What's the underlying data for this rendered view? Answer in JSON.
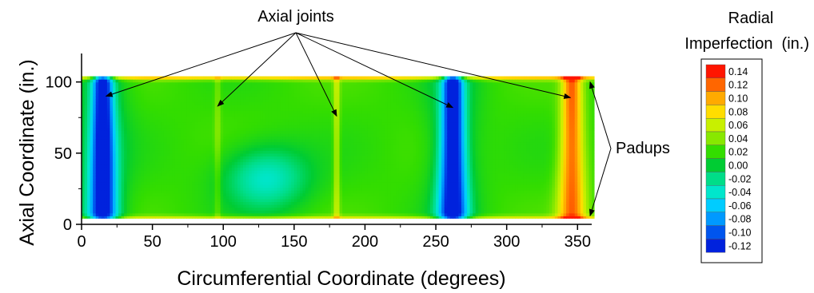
{
  "chart_data": {
    "type": "heatmap",
    "xlabel": "Circumferential Coordinate (degrees)",
    "ylabel": "Axial Coordinate (in.)",
    "xlim": [
      0,
      360
    ],
    "ylim": [
      0,
      120
    ],
    "xticks": [
      "0",
      "50",
      "100",
      "150",
      "200",
      "250",
      "300",
      "350"
    ],
    "yticks": [
      "0",
      "50",
      "100"
    ],
    "data_extent": {
      "x": [
        0,
        362
      ],
      "y": [
        4,
        104
      ]
    },
    "colorbar": {
      "title_line1": "Radial",
      "title_line2": "Imperfection  (in.)",
      "levels": [
        "0.14",
        "0.12",
        "0.10",
        "0.08",
        "0.06",
        "0.04",
        "0.02",
        "0.00",
        "-0.02",
        "-0.04",
        "-0.06",
        "-0.08",
        "-0.10",
        "-0.12"
      ],
      "colors": [
        "#ff1500",
        "#ff6600",
        "#ffaa00",
        "#ffdd00",
        "#c8f000",
        "#88e800",
        "#33dd00",
        "#00cc33",
        "#00dd88",
        "#00e6cc",
        "#00ccff",
        "#0099ff",
        "#0055ee",
        "#0022dd"
      ]
    },
    "annotations": {
      "axial_joints_label": "Axial joints",
      "axial_joints_x": [
        15,
        96,
        180,
        262,
        345
      ],
      "padups_label": "Padups",
      "padups_x": [
        360,
        360
      ]
    },
    "features": [
      {
        "kind": "column",
        "x": 15,
        "value": -0.12
      },
      {
        "kind": "column",
        "x": 262,
        "value": -0.12
      },
      {
        "kind": "column",
        "x": 96,
        "value": 0.04
      },
      {
        "kind": "column",
        "x": 180,
        "value": 0.06
      },
      {
        "kind": "column",
        "x": 346,
        "value": 0.12
      },
      {
        "kind": "band",
        "y": 103,
        "value": 0.08
      },
      {
        "kind": "band",
        "y": 5,
        "value": 0.06
      },
      {
        "kind": "region",
        "x": [
          100,
          160
        ],
        "y": [
          10,
          55
        ],
        "value": -0.04
      }
    ]
  }
}
